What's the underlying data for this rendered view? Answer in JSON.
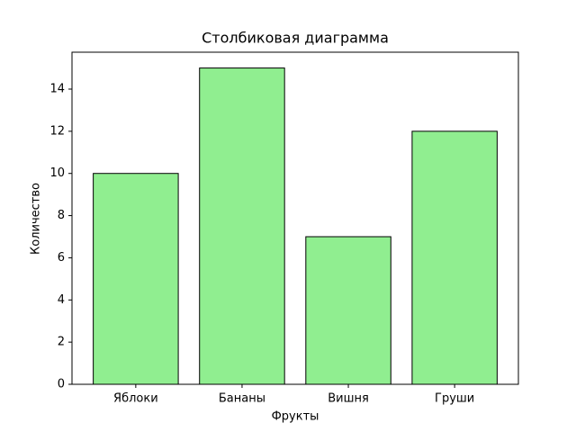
{
  "chart_data": {
    "type": "bar",
    "title": "Столбиковая диаграмма",
    "x_label": "Фрукты",
    "y_label": "Количество",
    "categories": [
      "Яблоки",
      "Бананы",
      "Вишня",
      "Груши"
    ],
    "values": [
      10,
      15,
      7,
      12
    ],
    "color": "#90ee90",
    "edgecolor": "#000000",
    "ylim": [
      0,
      15.75
    ],
    "yticks": [
      0,
      2,
      4,
      6,
      8,
      10,
      12,
      14
    ],
    "grid": false
  }
}
